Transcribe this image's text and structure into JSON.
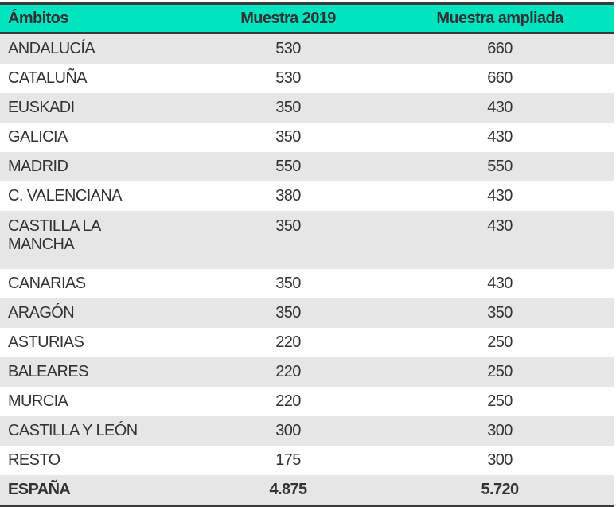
{
  "header": {
    "col1": "Ámbitos",
    "col2": "Muestra 2019",
    "col3": "Muestra ampliada"
  },
  "colors": {
    "header_bg": "#00e5bf",
    "stripe": "#e6e6e6",
    "border": "#3a3a3a"
  },
  "rows": [
    {
      "ambito": "ANDALUCÍA",
      "m2019": "530",
      "ampliada": "660"
    },
    {
      "ambito": "CATALUÑA",
      "m2019": "530",
      "ampliada": "660"
    },
    {
      "ambito": "EUSKADI",
      "m2019": "350",
      "ampliada": "430"
    },
    {
      "ambito": "GALICIA",
      "m2019": "350",
      "ampliada": "430"
    },
    {
      "ambito": "MADRID",
      "m2019": "550",
      "ampliada": "550"
    },
    {
      "ambito": "C. VALENCIANA",
      "m2019": "380",
      "ampliada": "430"
    },
    {
      "ambito": "CASTILLA LA MANCHA",
      "m2019": "350",
      "ampliada": "430"
    },
    {
      "ambito": "CANARIAS",
      "m2019": "350",
      "ampliada": "430"
    },
    {
      "ambito": "ARAGÓN",
      "m2019": "350",
      "ampliada": "350"
    },
    {
      "ambito": "ASTURIAS",
      "m2019": "220",
      "ampliada": "250"
    },
    {
      "ambito": "BALEARES",
      "m2019": "220",
      "ampliada": "250"
    },
    {
      "ambito": "MURCIA",
      "m2019": "220",
      "ampliada": "250"
    },
    {
      "ambito": "CASTILLA Y LEÓN",
      "m2019": "300",
      "ampliada": "300"
    },
    {
      "ambito": "RESTO",
      "m2019": "175",
      "ampliada": "300"
    }
  ],
  "total": {
    "ambito": "ESPAÑA",
    "m2019": "4.875",
    "ampliada": "5.720"
  }
}
